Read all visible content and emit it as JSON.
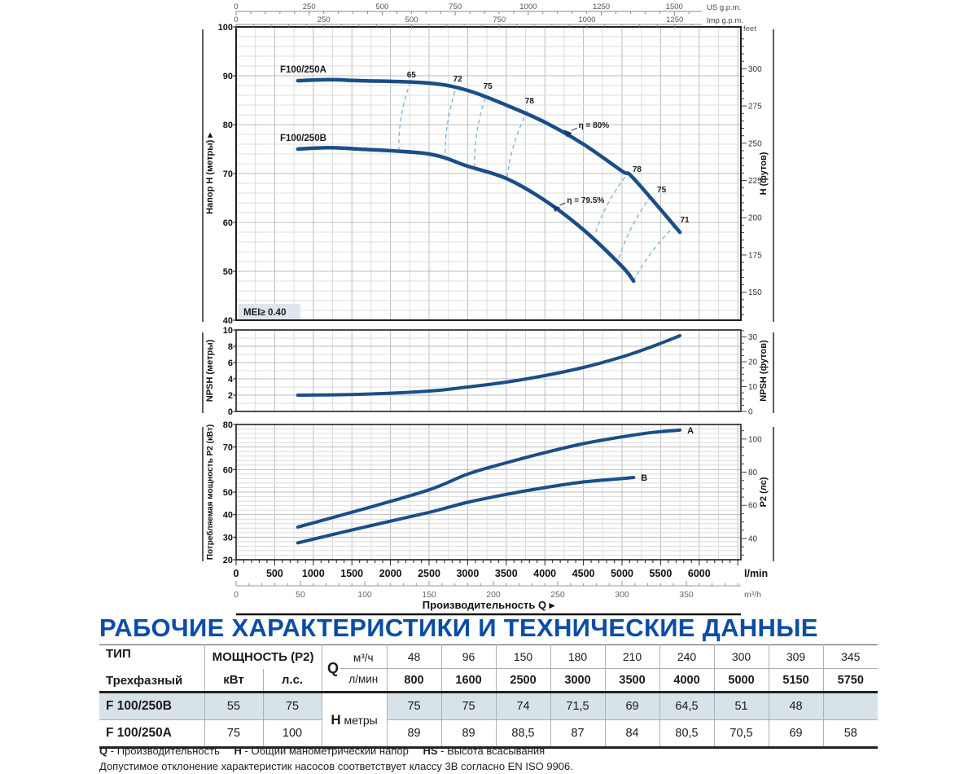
{
  "title": "РАБОЧИЕ ХАРАКТЕРИСТИКИ И ТЕХНИЧЕСКИЕ ДАННЫЕ",
  "colors": {
    "curve": "#1a4e87",
    "eff_dash": "#79b1da",
    "title_blue": "#0b4da6",
    "row_shade": "#d7e2e9",
    "mei_bg": "#dde6ec",
    "grid_minor": "#dcdcdc",
    "grid_major": "#bcbcbc",
    "plot_border": "#1f1f1f"
  },
  "axes": {
    "us_gpm": {
      "label": "US g.p.m.",
      "ticks": [
        0,
        250,
        500,
        750,
        1000,
        1250,
        1500
      ]
    },
    "imp_gpm": {
      "label": "Imp g.p.m.",
      "ticks": [
        0,
        250,
        500,
        750,
        1000,
        1250
      ]
    },
    "lmin": {
      "label": "l/min",
      "ticks": [
        0,
        500,
        1000,
        1500,
        2000,
        2500,
        3000,
        3500,
        4000,
        4500,
        5000,
        5500,
        6000
      ]
    },
    "m3h": {
      "label": "m³/h",
      "ticks": [
        0,
        50,
        100,
        150,
        200,
        250,
        300,
        350
      ]
    },
    "xlabel": "Производительность Q",
    "arrow": "▸",
    "feet_unit": "feet"
  },
  "chart_data": [
    {
      "id": "head",
      "type": "line",
      "ylabel_left": "Напор H (метры)",
      "ylabel_right": "H (футов)",
      "ylim": [
        40,
        100
      ],
      "yticks_left": [
        40,
        50,
        60,
        70,
        80,
        90,
        100
      ],
      "yticks_right_feet": [
        150,
        175,
        200,
        225,
        250,
        275,
        300
      ],
      "mei_label": "MEI≥ 0.40",
      "series": [
        {
          "name": "F100/250A",
          "label_xy": [
            344,
            89
          ],
          "x": [
            800,
            1200,
            1600,
            2500,
            3000,
            3500,
            4000,
            4500,
            5000,
            5150,
            5750
          ],
          "y": [
            89,
            89.2,
            89,
            88.5,
            87,
            84,
            80.5,
            76,
            70.5,
            69,
            58
          ]
        },
        {
          "name": "F100/250B",
          "label_xy": [
            344,
            173
          ],
          "x": [
            800,
            1200,
            1600,
            2500,
            3000,
            3500,
            4000,
            4500,
            5000,
            5150
          ],
          "y": [
            75,
            75.3,
            75,
            74,
            71.5,
            69,
            64.5,
            58.5,
            51,
            48
          ]
        }
      ],
      "efficiency_lines": [
        {
          "label": "65",
          "b": [
            2110,
            74.7
          ],
          "a": [
            2250,
            88.3
          ],
          "side": "top"
        },
        {
          "label": "72",
          "b": [
            2710,
            72.7
          ],
          "a": [
            2850,
            87.5
          ],
          "side": "top"
        },
        {
          "label": "75",
          "b": [
            3090,
            71.3
          ],
          "a": [
            3240,
            86.0
          ],
          "side": "top"
        },
        {
          "label": "78",
          "b": [
            3510,
            69.2
          ],
          "a": [
            3780,
            83.0
          ],
          "side": "top"
        },
        {
          "label": "78",
          "b": [
            4660,
            58.0
          ],
          "a": [
            5060,
            69.7
          ],
          "side": "right"
        },
        {
          "label": "75",
          "b": [
            4960,
            52.7
          ],
          "a": [
            5380,
            65.5
          ],
          "side": "right"
        },
        {
          "label": "71",
          "b": [
            5150,
            48.0
          ],
          "a": [
            5680,
            59.3
          ],
          "side": "right"
        }
      ],
      "eta_labels": [
        {
          "text": "η = 80%",
          "q": 4300,
          "h": 78.3
        },
        {
          "text": "η = 79.5%",
          "q": 4150,
          "h": 63.0
        }
      ]
    },
    {
      "id": "npsh",
      "type": "line",
      "ylabel_left": "NPSH (метры)",
      "ylabel_right": "NPSH (футов)",
      "ylim": [
        0,
        10
      ],
      "yticks_left": [
        0,
        2,
        4,
        6,
        8,
        10
      ],
      "yticks_right_feet": [
        0,
        10,
        20,
        30
      ],
      "series": [
        {
          "name": "NPSH",
          "x": [
            800,
            1600,
            2500,
            3000,
            3500,
            4000,
            4500,
            5000,
            5400,
            5750
          ],
          "y": [
            2,
            2.1,
            2.5,
            3,
            3.6,
            4.4,
            5.4,
            6.7,
            8,
            9.3
          ]
        }
      ]
    },
    {
      "id": "p2",
      "type": "line",
      "ylabel_left": "Потребляемая мощность P2 (кВт)",
      "ylabel_right": "P2 (лс)",
      "ylim": [
        20,
        80
      ],
      "yticks_left": [
        20,
        30,
        40,
        50,
        60,
        70,
        80
      ],
      "yticks_right_hp": [
        40,
        60,
        80,
        100
      ],
      "series": [
        {
          "name": "A",
          "end_label": "A",
          "x": [
            800,
            1600,
            2500,
            3000,
            3500,
            4000,
            4500,
            5000,
            5400,
            5750
          ],
          "y": [
            34.5,
            42,
            51,
            58,
            63,
            67.5,
            71.5,
            74.5,
            76.5,
            77.5
          ]
        },
        {
          "name": "B",
          "end_label": "B",
          "x": [
            800,
            1600,
            2500,
            3000,
            3500,
            4000,
            4500,
            5000,
            5150
          ],
          "y": [
            27.5,
            34,
            41,
            45.5,
            49,
            52,
            54.5,
            56,
            56.5
          ]
        }
      ]
    }
  ],
  "table": {
    "col1_header_top": "ТИП",
    "col1_header_bottom": "Трехфазный",
    "power_header": "МОЩНОСТЬ (P2)",
    "power_unit_kw": "кВт",
    "power_unit_hp": "л.с.",
    "q_label": "Q",
    "q_unit_top": "м³/ч",
    "q_unit_bottom": "л/мин",
    "q_m3h": [
      "48",
      "96",
      "150",
      "180",
      "210",
      "240",
      "300",
      "309",
      "345"
    ],
    "q_lmin": [
      "800",
      "1600",
      "2500",
      "3000",
      "3500",
      "4000",
      "5000",
      "5150",
      "5750"
    ],
    "h_label": "H",
    "h_unit": "метры",
    "rows": [
      {
        "type": "F 100/250B",
        "kw": "55",
        "hp": "75",
        "shaded": true,
        "h": [
          "75",
          "75",
          "74",
          "71,5",
          "69",
          "64,5",
          "51",
          "48",
          ""
        ]
      },
      {
        "type": "F 100/250A",
        "kw": "75",
        "hp": "100",
        "shaded": false,
        "h": [
          "89",
          "89",
          "88,5",
          "87",
          "84",
          "80,5",
          "70,5",
          "69",
          "58"
        ]
      }
    ]
  },
  "footnotes": {
    "q_term": "Q",
    "q_def": "- Производительность",
    "h_term": "H",
    "h_def": "- Общий манометрический напор",
    "hs_term": "HS",
    "hs_def": "- Высота всасывания",
    "tolerance": "Допустимое отклонение характеристик насосов соответствует классу 3B согласно EN ISO 9906."
  }
}
